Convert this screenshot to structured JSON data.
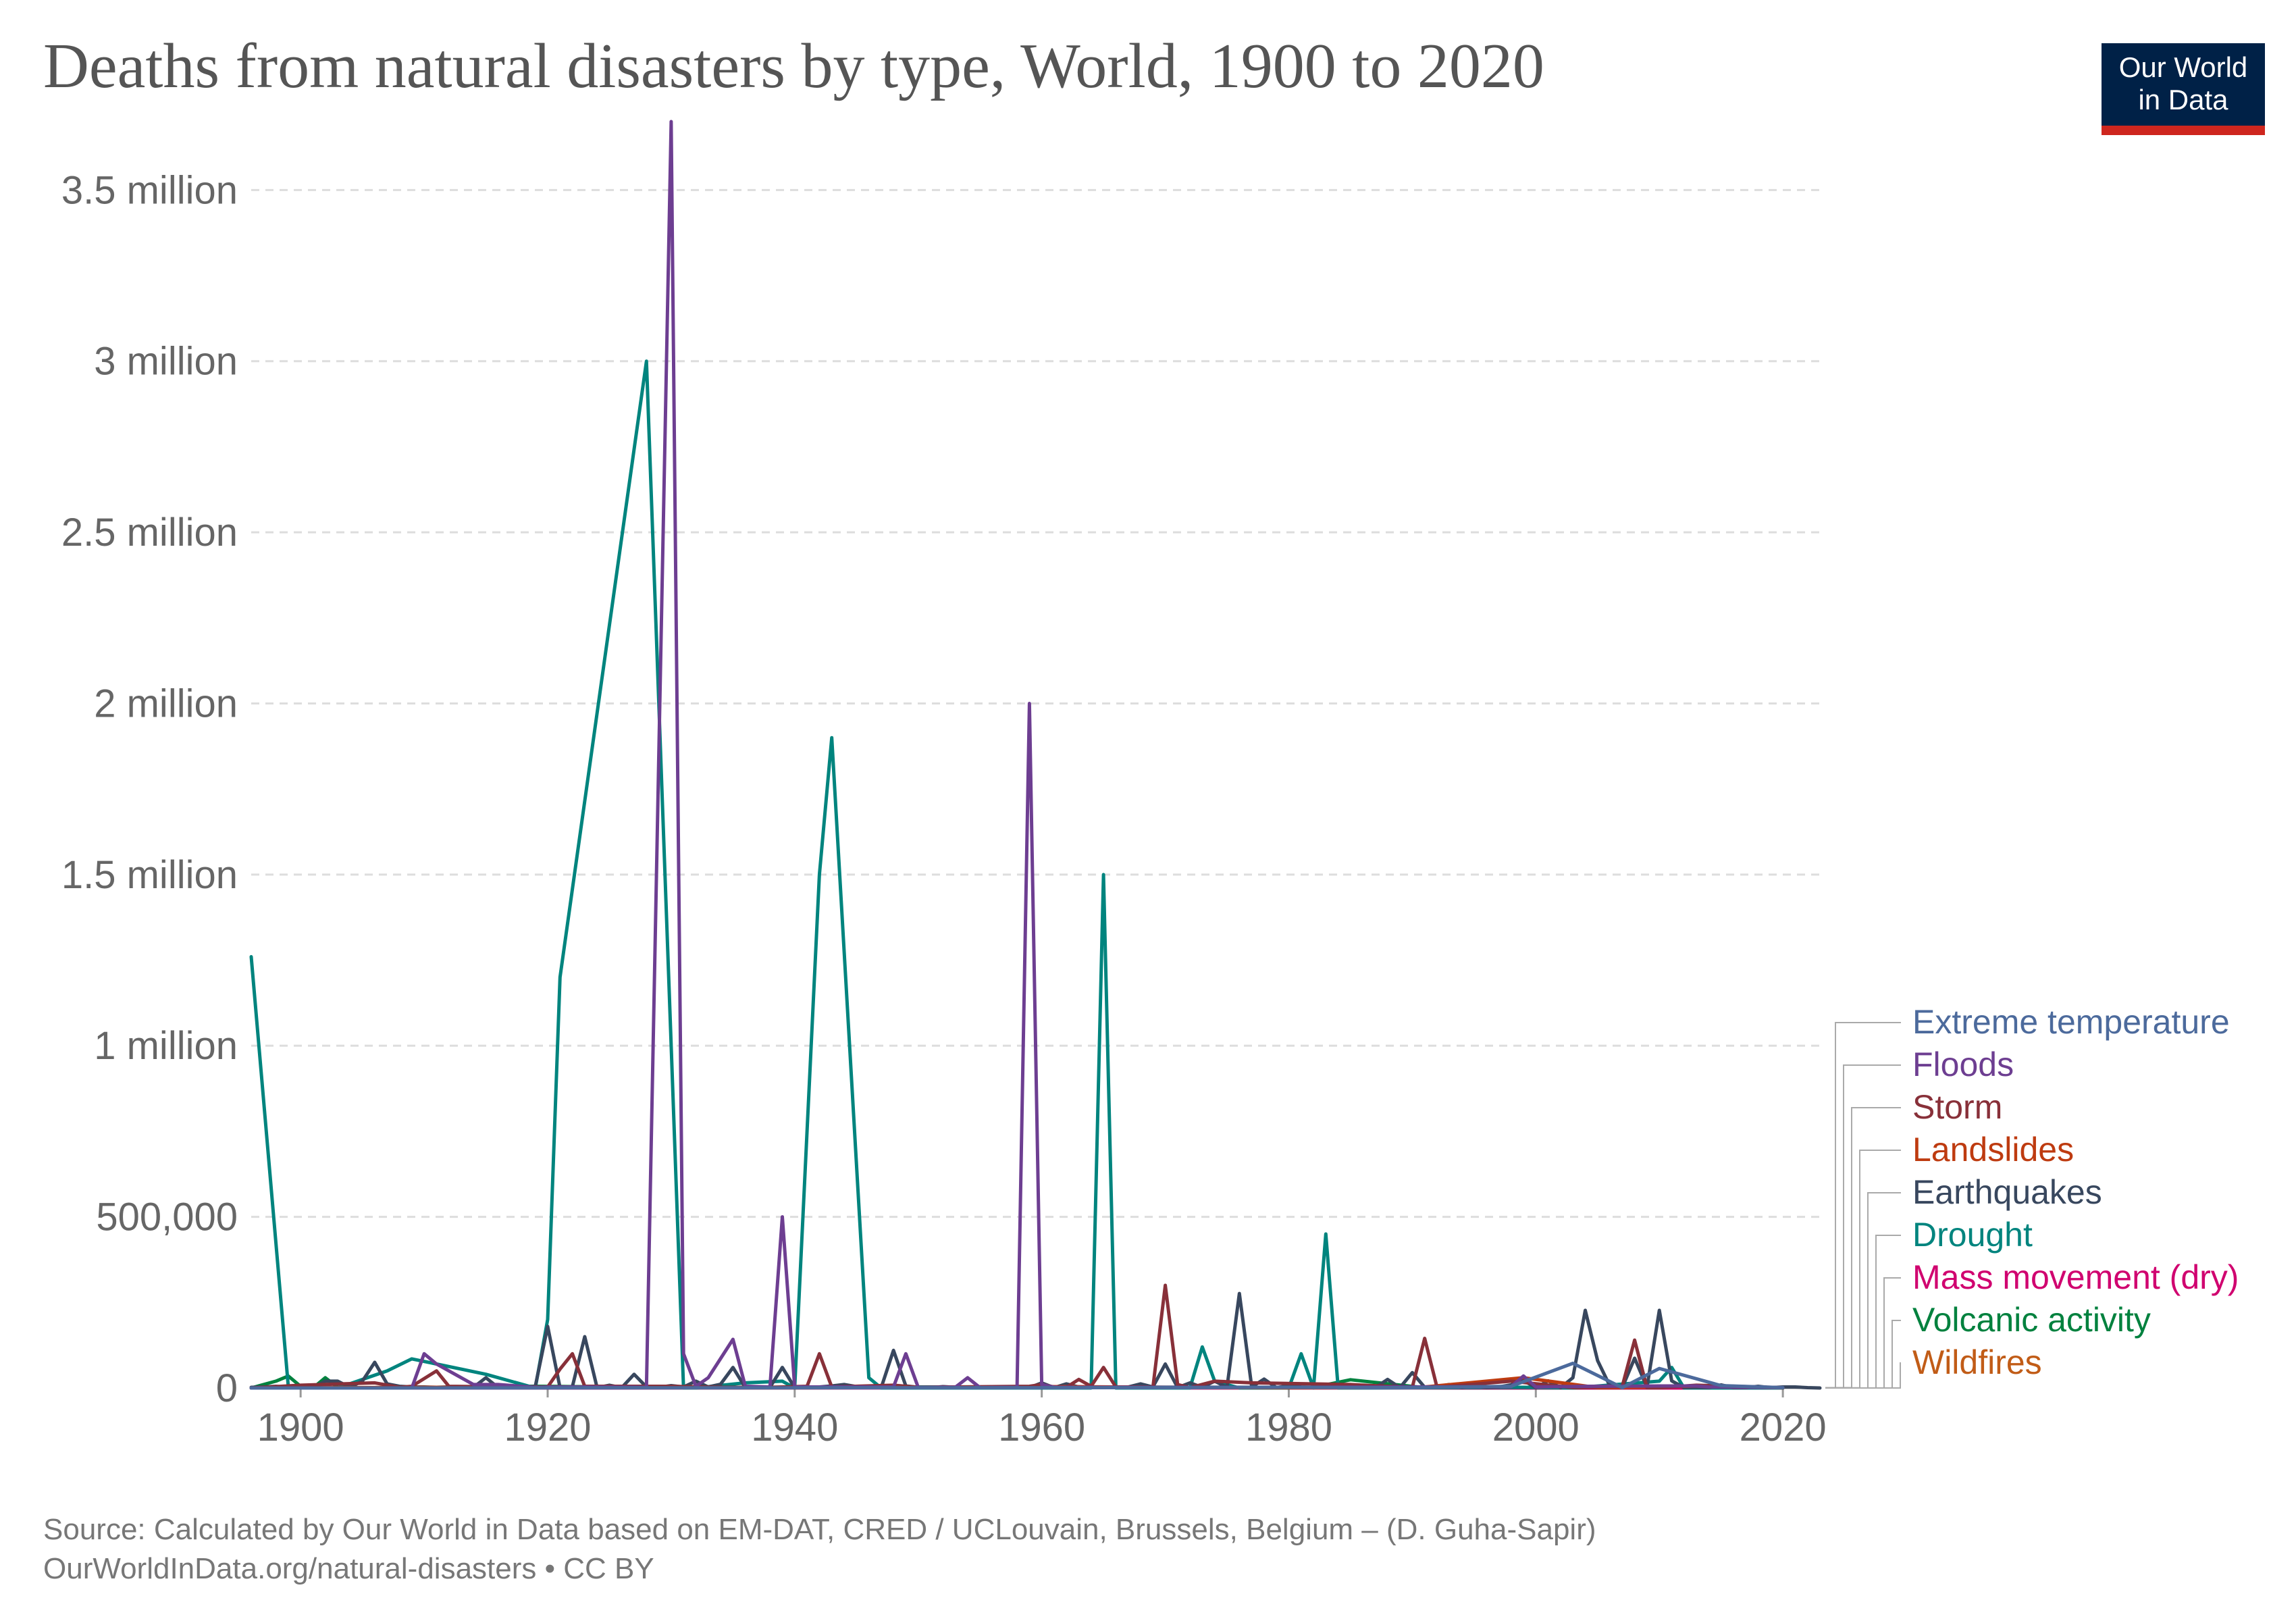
{
  "header": {
    "title": "Deaths from natural disasters by type, World, 1900 to 2020",
    "logo_line1": "Our World",
    "logo_line2": "in Data"
  },
  "footer": {
    "source": "Source: Calculated by Our World in Data based on EM-DAT, CRED / UCLouvain, Brussels, Belgium – (D. Guha-Sapir)",
    "url": "OurWorldInData.org/natural-disasters • CC BY"
  },
  "chart_data": {
    "type": "line",
    "title": "Deaths from natural disasters by type, World, 1900 to 2020",
    "xlabel": "",
    "ylabel": "",
    "xlim": [
      1896,
      2023
    ],
    "ylim": [
      0,
      3700000
    ],
    "grid": true,
    "legend_position": "right",
    "x_ticks": [
      1900,
      1920,
      1940,
      1960,
      1980,
      2000,
      2020
    ],
    "x_tick_labels": [
      "1900",
      "1920",
      "1940",
      "1960",
      "1980",
      "2000",
      "2020"
    ],
    "y_ticks": [
      0,
      500000,
      1000000,
      1500000,
      2000000,
      2500000,
      3000000,
      3500000
    ],
    "y_tick_labels": [
      "0",
      "500,000",
      "1 million",
      "1.5 million",
      "2 million",
      "2.5 million",
      "3 million",
      "3.5 million"
    ],
    "series": [
      {
        "name": "Wildfires",
        "color": "#c15c17",
        "x": [
          1900,
          1911,
          1914,
          1918,
          1926,
          1934,
          1939,
          1948,
          1953,
          1961,
          1970,
          1976,
          1987,
          1991,
          1997,
          2003,
          2009,
          2015,
          2020
        ],
        "values": [
          0,
          1000,
          2000,
          5000,
          3000,
          1000,
          2000,
          4000,
          1000,
          2000,
          500,
          500,
          1000,
          500,
          300,
          100,
          200,
          100,
          50
        ]
      },
      {
        "name": "Volcanic activity",
        "color": "#00813e",
        "x": [
          1896,
          1897,
          1898,
          1899,
          1900,
          1901,
          1902,
          1903,
          1906,
          1911,
          1919,
          1930,
          1951,
          1982,
          1985,
          1991,
          2000,
          2010,
          2018,
          2020
        ],
        "values": [
          0,
          10000,
          20000,
          35000,
          5000,
          0,
          30000,
          2000,
          100,
          1300,
          5000,
          1300,
          3000,
          1700,
          24000,
          700,
          10,
          400,
          500,
          0
        ]
      },
      {
        "name": "Mass movement (dry)",
        "color": "#d0006f",
        "x": [
          1896,
          1920,
          1935,
          1950,
          1962,
          1970,
          1980,
          1990,
          2000,
          2010,
          2020
        ],
        "values": [
          0,
          0,
          200,
          100,
          4000,
          300,
          200,
          300,
          100,
          100,
          0
        ]
      },
      {
        "name": "Drought",
        "color": "#00847e",
        "x": [
          1896,
          1899,
          1900,
          1903,
          1907,
          1909,
          1911,
          1913,
          1915,
          1917,
          1919,
          1920,
          1921,
          1928,
          1929,
          1931,
          1932,
          1936,
          1939,
          1940,
          1942,
          1943,
          1946,
          1947,
          1960,
          1964,
          1965,
          1966,
          1969,
          1972,
          1973,
          1974,
          1976,
          1980,
          1981,
          1982,
          1983,
          1984,
          1999,
          2003,
          2010,
          2011,
          2012,
          2020
        ],
        "values": [
          1260000,
          5000,
          0,
          0,
          50000,
          85000,
          70000,
          55000,
          40000,
          20000,
          0,
          200000,
          1200000,
          3000000,
          2000000,
          0,
          0,
          15000,
          20000,
          0,
          1500000,
          1900000,
          30000,
          0,
          0,
          0,
          1500000,
          0,
          0,
          0,
          120000,
          20000,
          0,
          0,
          100000,
          0,
          450000,
          0,
          2000,
          0,
          20000,
          60000,
          0,
          0
        ]
      },
      {
        "name": "Earthquakes",
        "color": "#38475e",
        "x": [
          1896,
          1897,
          1898,
          1899,
          1900,
          1901,
          1902,
          1903,
          1904,
          1905,
          1906,
          1907,
          1908,
          1909,
          1910,
          1911,
          1912,
          1913,
          1914,
          1915,
          1916,
          1917,
          1918,
          1919,
          1920,
          1921,
          1922,
          1923,
          1924,
          1925,
          1926,
          1927,
          1928,
          1929,
          1930,
          1931,
          1932,
          1933,
          1934,
          1935,
          1936,
          1937,
          1938,
          1939,
          1940,
          1941,
          1942,
          1943,
          1944,
          1945,
          1946,
          1947,
          1948,
          1949,
          1950,
          1951,
          1952,
          1953,
          1954,
          1955,
          1956,
          1957,
          1958,
          1959,
          1960,
          1961,
          1962,
          1963,
          1964,
          1965,
          1966,
          1967,
          1968,
          1969,
          1970,
          1971,
          1972,
          1973,
          1974,
          1975,
          1976,
          1977,
          1978,
          1979,
          1980,
          1981,
          1982,
          1983,
          1984,
          1985,
          1986,
          1987,
          1988,
          1989,
          1990,
          1991,
          1992,
          1993,
          1994,
          1995,
          1996,
          1997,
          1998,
          1999,
          2000,
          2001,
          2002,
          2003,
          2004,
          2005,
          2006,
          2007,
          2008,
          2009,
          2010,
          2011,
          2012,
          2013,
          2014,
          2015,
          2016,
          2017,
          2018,
          2019,
          2020,
          2021,
          2022,
          2023
        ],
        "values": [
          2000,
          3000,
          5000,
          2000,
          3000,
          1000,
          20000,
          20000,
          2000,
          20000,
          75000,
          12000,
          5000,
          3000,
          3000,
          2000,
          3000,
          1000,
          2000,
          30000,
          1000,
          2000,
          1000,
          5000,
          180000,
          1000,
          4000,
          150000,
          1000,
          8000,
          1000,
          40000,
          3000,
          2000,
          7000,
          3000,
          20000,
          3000,
          11000,
          60000,
          1000,
          1000,
          2000,
          60000,
          1000,
          2000,
          3000,
          6000,
          10000,
          4000,
          2000,
          1000,
          110000,
          6000,
          2000,
          1000,
          4000,
          2000,
          2000,
          1000,
          3000,
          2000,
          1000,
          1000,
          15000,
          1000,
          12000,
          3000,
          1000,
          1000,
          1000,
          3000,
          12000,
          3000,
          70000,
          1000,
          15000,
          2000,
          20000,
          2000,
          276000,
          3000,
          26000,
          1000,
          7000,
          3000,
          2000,
          1000,
          2000,
          10000,
          1000,
          1000,
          25000,
          1000,
          45000,
          2000,
          4000,
          10000,
          1000,
          7000,
          1000,
          3000,
          9000,
          22000,
          1000,
          21000,
          1000,
          30000,
          227000,
          80000,
          6000,
          1000,
          87000,
          2000,
          227000,
          21000,
          1000,
          2000,
          1000,
          9000,
          1000,
          1000,
          5000,
          1000,
          3000,
          3000,
          1000,
          0
        ]
      },
      {
        "name": "Landslides",
        "color": "#be3b10",
        "x": [
          1896,
          1910,
          1916,
          1920,
          1926,
          1938,
          1948,
          1962,
          1970,
          1980,
          1987,
          1991,
          1999,
          2005,
          2010,
          2013,
          2020
        ],
        "values": [
          0,
          2000,
          1000,
          3000,
          1000,
          500,
          1000,
          4000,
          2000,
          500,
          1000,
          3000,
          30000,
          1000,
          3000,
          6000,
          500
        ]
      },
      {
        "name": "Storm",
        "color": "#883039",
        "x": [
          1896,
          1900,
          1906,
          1908,
          1909,
          1911,
          1912,
          1919,
          1920,
          1921,
          1922,
          1923,
          1930,
          1934,
          1938,
          1939,
          1941,
          1942,
          1943,
          1948,
          1950,
          1959,
          1960,
          1961,
          1962,
          1963,
          1964,
          1965,
          1966,
          1969,
          1970,
          1971,
          1972,
          1974,
          1977,
          1985,
          1988,
          1990,
          1991,
          1992,
          1998,
          2003,
          2007,
          2008,
          2009,
          2010,
          2013,
          2020
        ],
        "values": [
          0,
          8000,
          15000,
          2000,
          5000,
          50000,
          5000,
          2000,
          3000,
          55000,
          100000,
          5000,
          5000,
          2000,
          2000,
          3000,
          5000,
          100000,
          3000,
          8000,
          2000,
          5000,
          10000,
          3000,
          2000,
          25000,
          5000,
          60000,
          3000,
          2000,
          300000,
          10000,
          1000,
          20000,
          15000,
          10000,
          5000,
          2000,
          145000,
          2000,
          20000,
          1000,
          5000,
          140000,
          1000,
          1000,
          8000,
          1000
        ]
      },
      {
        "name": "Floods",
        "color": "#6d3e91",
        "x": [
          1896,
          1905,
          1906,
          1909,
          1910,
          1911,
          1914,
          1916,
          1919,
          1920,
          1923,
          1928,
          1930,
          1931,
          1932,
          1933,
          1935,
          1936,
          1938,
          1939,
          1940,
          1948,
          1949,
          1950,
          1953,
          1954,
          1955,
          1958,
          1959,
          1960,
          1961,
          1970,
          1975,
          1980,
          1998,
          1999,
          2000,
          2004,
          2010,
          2013,
          2014,
          2020
        ],
        "values": [
          0,
          0,
          0,
          0,
          100000,
          70000,
          10000,
          10000,
          2000,
          3000,
          3000,
          2000,
          3700000,
          100000,
          5000,
          30000,
          142000,
          5000,
          3000,
          500000,
          3000,
          3000,
          100000,
          2000,
          2000,
          30000,
          1000,
          2000,
          2000000,
          10000,
          2000,
          2000,
          2000,
          2000,
          4000,
          35000,
          3000,
          5000,
          6000,
          6000,
          3000,
          1000
        ]
      },
      {
        "name": "Extreme temperature",
        "color": "#4c6a9c",
        "x": [
          1896,
          1970,
          1980,
          1987,
          1990,
          1998,
          2003,
          2007,
          2010,
          2015,
          2020
        ],
        "values": [
          0,
          1000,
          2000,
          1000,
          1000,
          5000,
          72000,
          1000,
          57000,
          7000,
          1000
        ]
      }
    ],
    "legend_order": [
      "Extreme temperature",
      "Floods",
      "Storm",
      "Landslides",
      "Earthquakes",
      "Drought",
      "Mass movement (dry)",
      "Volcanic activity",
      "Wildfires"
    ]
  }
}
